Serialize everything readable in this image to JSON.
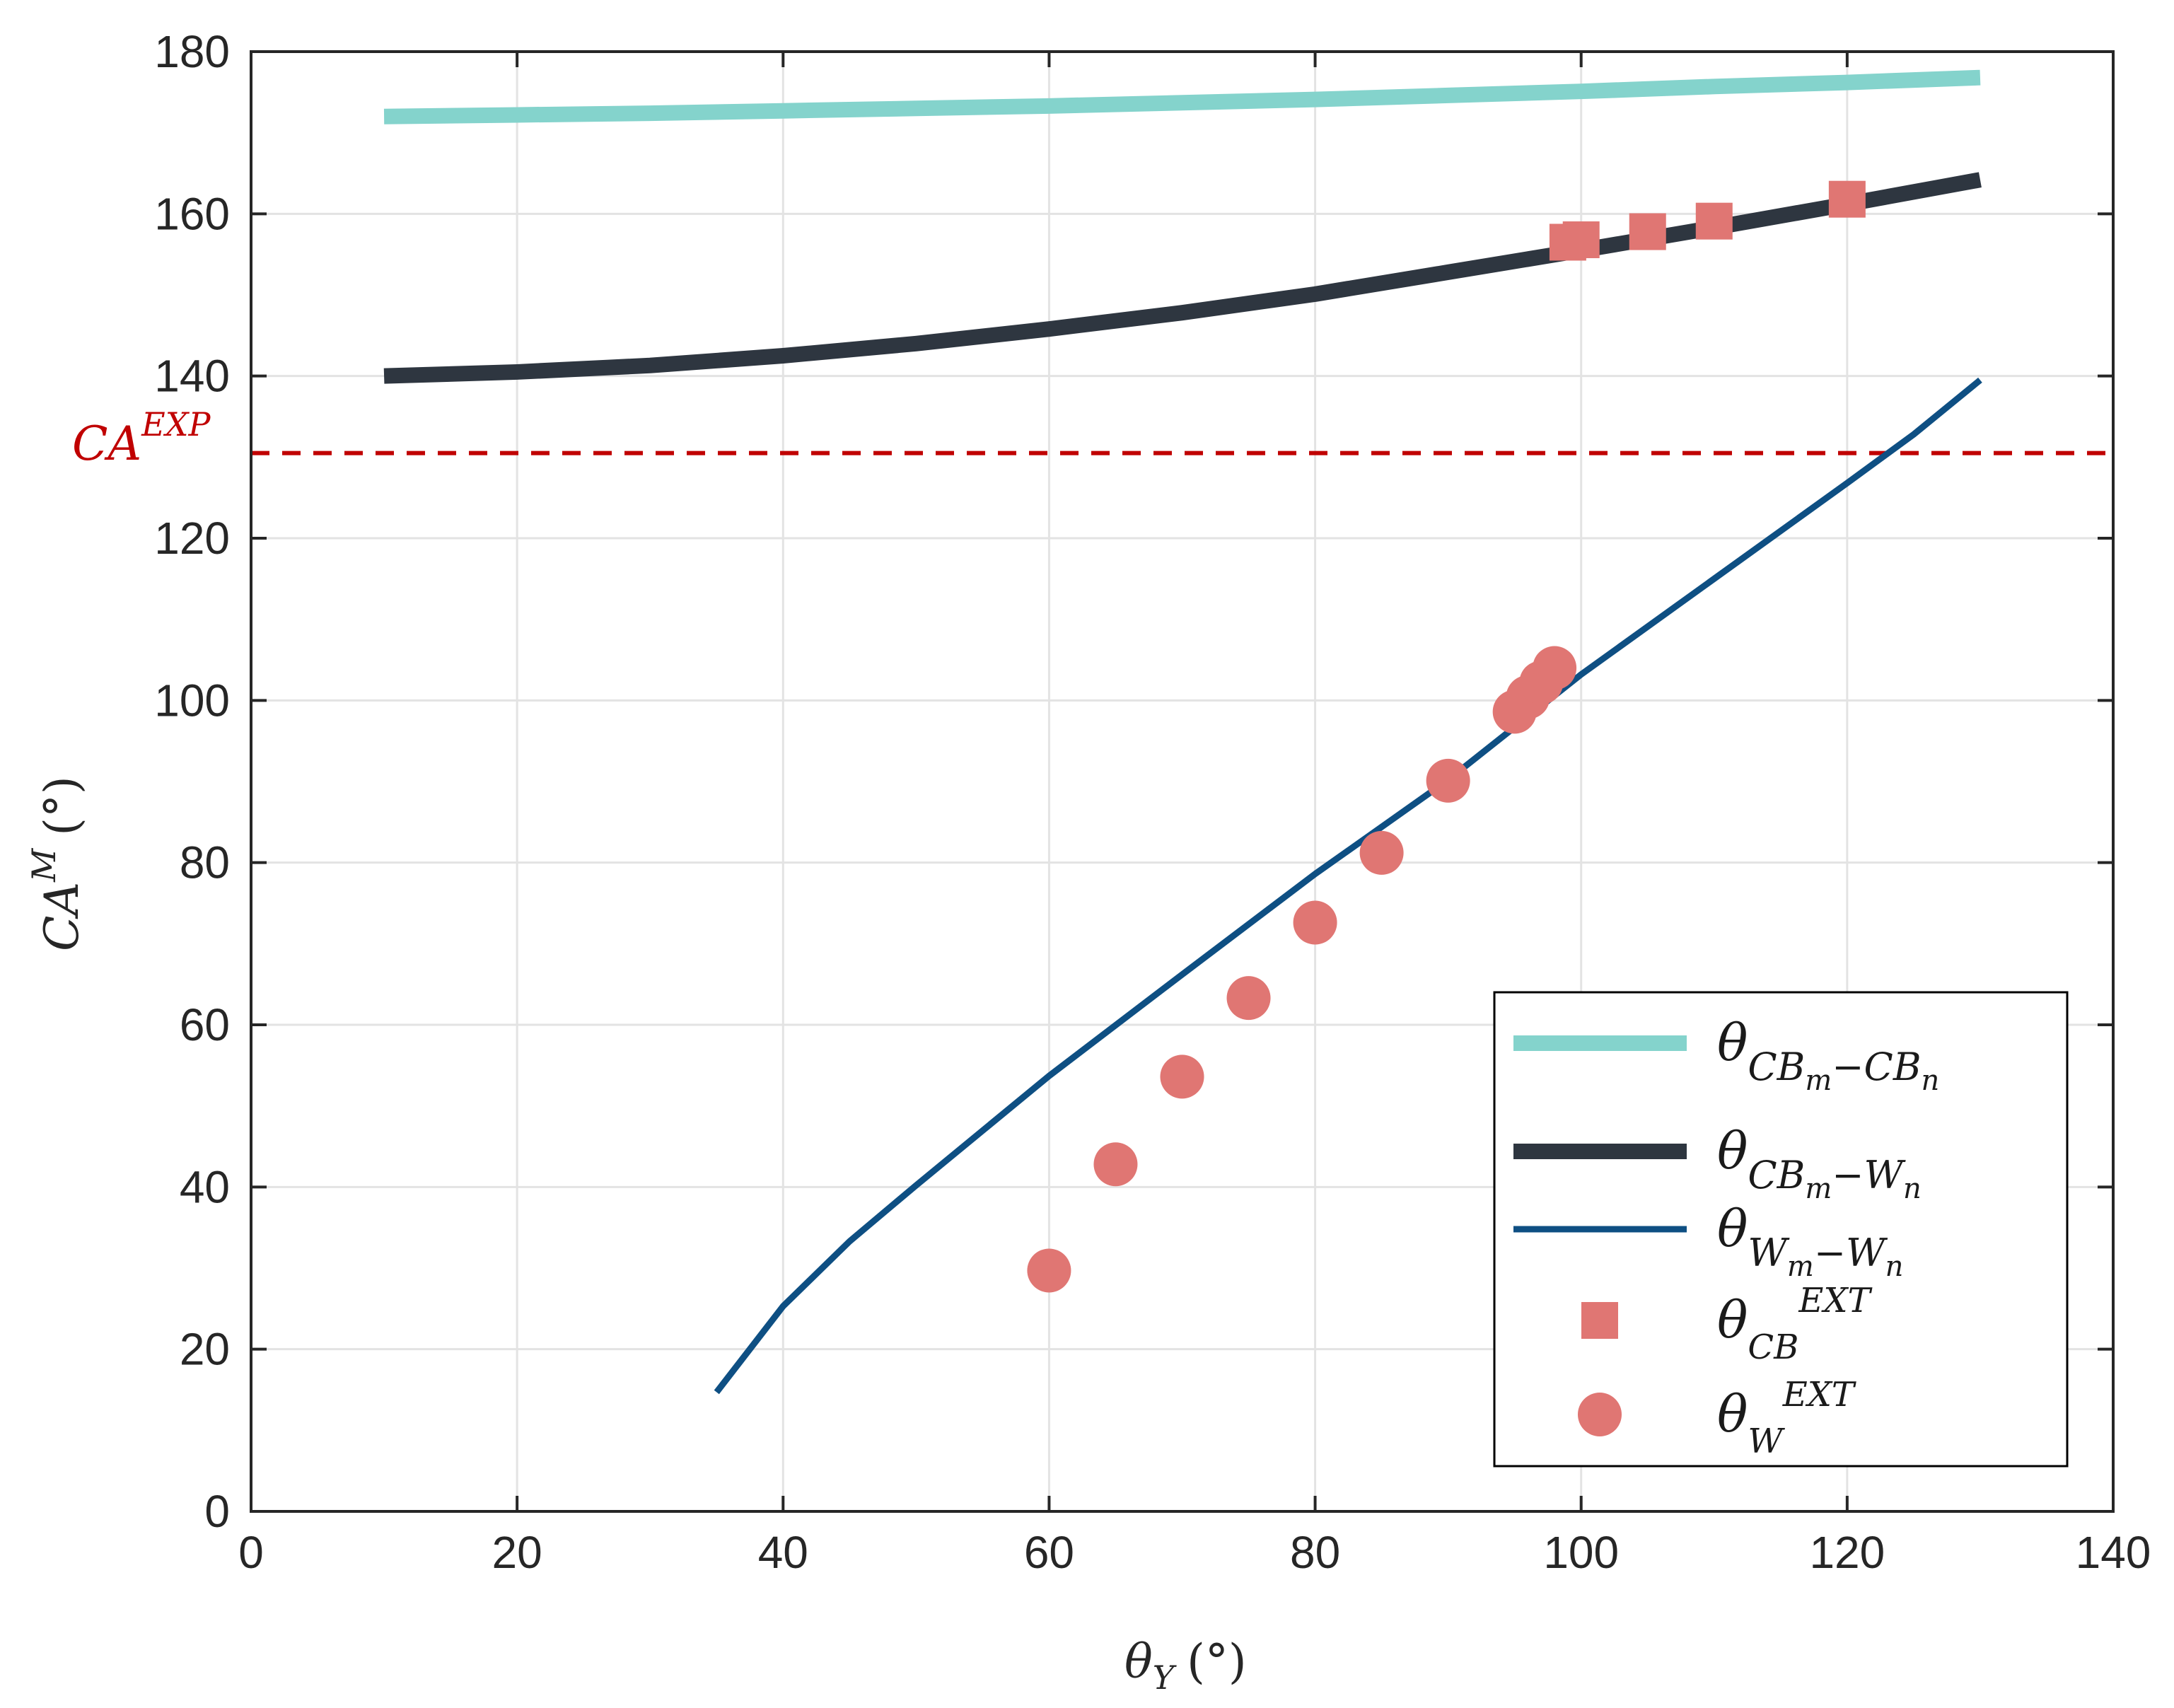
{
  "chart_data": {
    "type": "line",
    "xlabel": {
      "symbol": "θ",
      "sub": "Y",
      "unit": "(°)"
    },
    "ylabel": {
      "symbol": "CA",
      "sup": "M",
      "unit": "(°)"
    },
    "xlim": [
      0,
      140
    ],
    "ylim": [
      0,
      180
    ],
    "xticks": [
      0,
      20,
      40,
      60,
      80,
      100,
      120,
      140
    ],
    "yticks": [
      0,
      20,
      40,
      60,
      80,
      100,
      120,
      140,
      160,
      180
    ],
    "grid": true,
    "reference_line": {
      "label": "CA",
      "sup": "EXP",
      "y": 130.5,
      "color": "#c00000",
      "style": "dashed"
    },
    "series": [
      {
        "name": "CBm-CBn",
        "label_base": "θ",
        "label_sub": "CB",
        "label_sub2": "m",
        "label_mid": "−CB",
        "label_sub3": "n",
        "kind": "line",
        "color": "#84d3cc",
        "width": 22,
        "x": [
          10,
          20,
          30,
          40,
          50,
          60,
          70,
          80,
          90,
          100,
          110,
          120,
          130
        ],
        "y": [
          172,
          172.2,
          172.4,
          172.7,
          173,
          173.3,
          173.7,
          174.1,
          174.6,
          175.1,
          175.7,
          176.2,
          176.8
        ]
      },
      {
        "name": "CBm-Wn",
        "label_base": "θ",
        "label_sub": "CB",
        "label_sub2": "m",
        "label_mid": "−W",
        "label_sub3": "n",
        "kind": "line",
        "color": "#2e3640",
        "width": 22,
        "x": [
          10,
          20,
          30,
          40,
          50,
          60,
          70,
          80,
          90,
          100,
          110,
          120,
          130
        ],
        "y": [
          140,
          140.5,
          141.3,
          142.5,
          144,
          145.8,
          147.8,
          150.1,
          152.8,
          155.5,
          158.3,
          161.2,
          164.2
        ]
      },
      {
        "name": "Wm-Wn",
        "label_base": "θ",
        "label_sub": "W",
        "label_sub2": "m",
        "label_mid": "−W",
        "label_sub3": "n",
        "kind": "line",
        "color": "#0e4f83",
        "width": 9,
        "x": [
          35,
          40,
          45,
          50,
          60,
          70,
          80,
          90,
          100,
          110,
          120,
          125,
          130
        ],
        "y": [
          14.7,
          25.3,
          33.3,
          40.2,
          53.7,
          66.2,
          78.6,
          90.2,
          103.2,
          115,
          126.8,
          132.8,
          139.5
        ]
      },
      {
        "name": "CB EXT",
        "label_base": "θ",
        "label_sub": "CB",
        "label_sup": "EXT",
        "kind": "square",
        "color": "#e07673",
        "x": [
          99,
          100,
          105,
          110,
          120
        ],
        "y": [
          156.5,
          156.8,
          157.8,
          159.1,
          161.8
        ]
      },
      {
        "name": "W EXT",
        "label_base": "θ",
        "label_sub": "W",
        "label_sup": "EXT",
        "kind": "circle",
        "color": "#e07673",
        "x": [
          60,
          65,
          70,
          75,
          80,
          85,
          90,
          95,
          96,
          97,
          98
        ],
        "y": [
          29.7,
          42.8,
          53.6,
          63.3,
          72.6,
          81.2,
          90.1,
          98.6,
          100.4,
          102.2,
          104
        ]
      }
    ]
  }
}
